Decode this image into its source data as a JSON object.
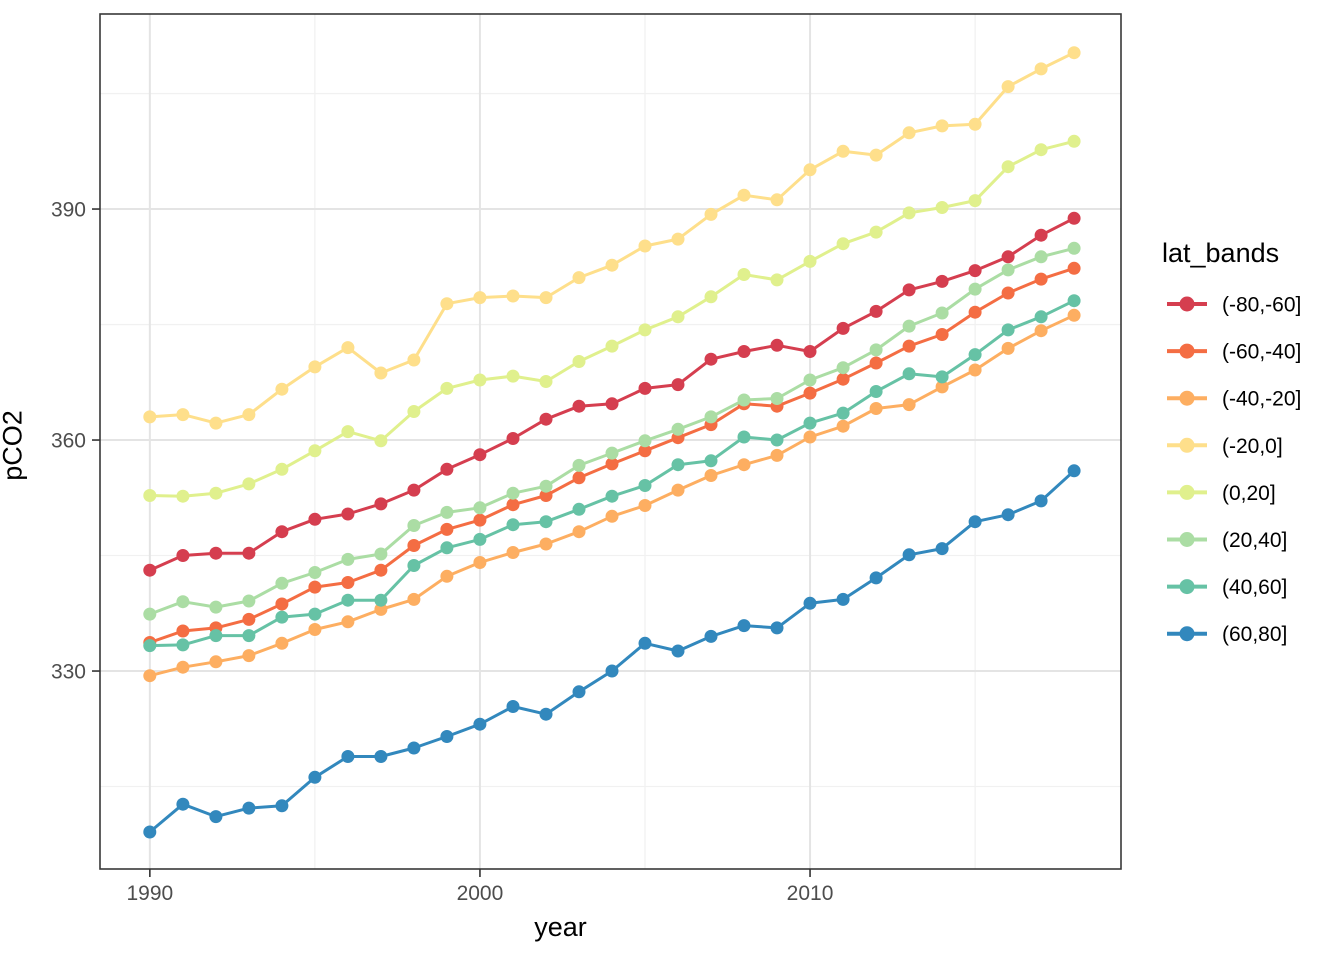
{
  "chart_data": {
    "type": "line",
    "title": "",
    "xlabel": "year",
    "ylabel": "pCO2",
    "legend_title": "lat_bands",
    "legend_position": "right",
    "grid": "major and minor, light grey on white, dark panel border",
    "x": [
      1990,
      1991,
      1992,
      1993,
      1994,
      1995,
      1996,
      1997,
      1998,
      1999,
      2000,
      2001,
      2002,
      2003,
      2004,
      2005,
      2006,
      2007,
      2008,
      2009,
      2010,
      2011,
      2012,
      2013,
      2014,
      2015,
      2016,
      2017,
      2018
    ],
    "x_range": [
      1988.49,
      2019.42
    ],
    "y_range": [
      304.29,
      415.33
    ],
    "x_major_ticks": [
      1990,
      2000,
      2010
    ],
    "x_tick_labels": [
      "1990",
      "2000",
      "2010"
    ],
    "x_minor_gridlines": [
      1995,
      2005,
      2015
    ],
    "y_major_ticks": [
      330,
      360,
      390
    ],
    "y_tick_labels": [
      "330",
      "360",
      "390"
    ],
    "y_minor_gridlines": [
      315,
      345,
      375,
      405
    ],
    "series": [
      {
        "name": "(-80,-60]",
        "color": "#D53E4F",
        "values": [
          343.1,
          345.0,
          345.3,
          345.3,
          348.1,
          349.7,
          350.4,
          351.7,
          353.5,
          356.2,
          358.1,
          360.2,
          362.7,
          364.4,
          364.7,
          366.7,
          367.2,
          370.5,
          371.5,
          372.3,
          371.5,
          374.5,
          376.7,
          379.5,
          380.6,
          382.0,
          383.8,
          386.6,
          388.8
        ]
      },
      {
        "name": "(-60,-40]",
        "color": "#F46D43",
        "values": [
          333.7,
          335.2,
          335.6,
          336.7,
          338.7,
          340.9,
          341.5,
          343.1,
          346.3,
          348.4,
          349.6,
          351.6,
          352.8,
          355.1,
          356.9,
          358.6,
          360.3,
          362.0,
          364.7,
          364.4,
          366.1,
          367.9,
          370.0,
          372.2,
          373.7,
          376.6,
          379.1,
          380.9,
          382.3
        ]
      },
      {
        "name": "(-40,-20]",
        "color": "#FDAE61",
        "values": [
          329.4,
          330.5,
          331.2,
          332.0,
          333.6,
          335.4,
          336.4,
          338.0,
          339.3,
          342.3,
          344.1,
          345.4,
          346.5,
          348.1,
          350.1,
          351.5,
          353.5,
          355.4,
          356.8,
          358.0,
          360.4,
          361.8,
          364.1,
          364.6,
          366.9,
          369.1,
          371.9,
          374.2,
          376.2
        ]
      },
      {
        "name": "(-20,0]",
        "color": "#FEDF8B",
        "values": [
          363.0,
          363.3,
          362.2,
          363.3,
          366.6,
          369.5,
          372.0,
          368.7,
          370.4,
          377.7,
          378.5,
          378.7,
          378.5,
          381.1,
          382.7,
          385.2,
          386.1,
          389.3,
          391.8,
          391.2,
          395.1,
          397.5,
          397.0,
          399.9,
          400.8,
          401.0,
          405.9,
          408.2,
          410.3
        ]
      },
      {
        "name": "(0,20]",
        "color": "#E0F08D",
        "values": [
          352.8,
          352.7,
          353.1,
          354.3,
          356.2,
          358.6,
          361.1,
          359.9,
          363.7,
          366.7,
          367.8,
          368.3,
          367.6,
          370.2,
          372.2,
          374.3,
          376.0,
          378.6,
          381.5,
          380.8,
          383.2,
          385.5,
          387.0,
          389.5,
          390.2,
          391.1,
          395.5,
          397.7,
          398.8
        ]
      },
      {
        "name": "(20,40]",
        "color": "#ABDDA4",
        "values": [
          337.4,
          339.0,
          338.3,
          339.1,
          341.4,
          342.8,
          344.5,
          345.2,
          348.9,
          350.6,
          351.2,
          353.1,
          354.0,
          356.7,
          358.3,
          359.9,
          361.4,
          363.0,
          365.2,
          365.4,
          367.8,
          369.4,
          371.7,
          374.8,
          376.5,
          379.6,
          382.1,
          383.8,
          384.9
        ]
      },
      {
        "name": "(40,60]",
        "color": "#66C2A5",
        "values": [
          333.3,
          333.4,
          334.6,
          334.6,
          337.0,
          337.4,
          339.2,
          339.2,
          343.7,
          346.0,
          347.1,
          349.0,
          349.4,
          351.0,
          352.7,
          354.1,
          356.8,
          357.3,
          360.4,
          360.0,
          362.2,
          363.5,
          366.3,
          368.6,
          368.2,
          371.1,
          374.3,
          376.0,
          378.1
        ]
      },
      {
        "name": "(60,80]",
        "color": "#3288BD",
        "values": [
          309.1,
          312.7,
          311.1,
          312.2,
          312.5,
          316.2,
          318.9,
          318.9,
          320.0,
          321.5,
          323.1,
          325.4,
          324.4,
          327.3,
          330.0,
          333.6,
          332.6,
          334.5,
          335.9,
          335.6,
          338.8,
          339.3,
          342.1,
          345.1,
          345.9,
          349.4,
          350.3,
          352.1,
          356.0
        ]
      }
    ]
  },
  "colors": {
    "background": "#FFFFFF",
    "panel_background": "#FFFFFF",
    "panel_border": "#383838",
    "grid_major": "#E4E4E4",
    "grid_minor": "#F1F1F1",
    "tick_mark": "#333333",
    "tick_label": "#4D4D4D",
    "axis_title": "#000000",
    "legend_text": "#000000"
  }
}
